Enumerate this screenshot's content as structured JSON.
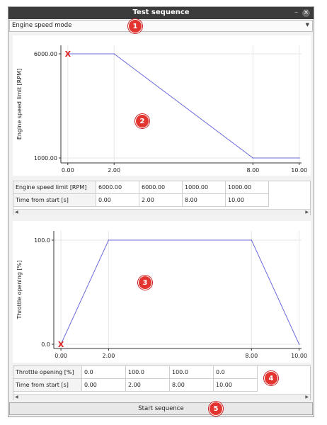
{
  "window": {
    "title": "Test sequence"
  },
  "mode_select": {
    "value": "Engine speed mode"
  },
  "chart_data": [
    {
      "type": "line",
      "x": [
        0,
        2,
        8,
        10
      ],
      "y": [
        6000,
        6000,
        1000,
        1000
      ],
      "xlabel": "Time from start [s]",
      "ylabel": "Engine speed limit [RPM]",
      "xticks": [
        "0.00",
        "2.00",
        "8.00",
        "10.00"
      ],
      "yticks": [
        "1000.00",
        "6000.00"
      ],
      "xlim": [
        -0.3,
        10.1
      ],
      "ylim": [
        1000,
        6000
      ],
      "marker": {
        "x": 0,
        "y": 6000,
        "symbol": "X"
      },
      "color": "#6b6bdb"
    },
    {
      "type": "line",
      "x": [
        0,
        2,
        8,
        10
      ],
      "y": [
        0,
        100,
        100,
        0
      ],
      "xlabel": "Time from start [s]",
      "ylabel": "Throttle opening [%]",
      "xticks": [
        "0.00",
        "2.00",
        "8.00",
        "10.00"
      ],
      "yticks": [
        "0.0",
        "100.0"
      ],
      "xlim": [
        -0.3,
        10.1
      ],
      "ylim": [
        0,
        100
      ],
      "marker": {
        "x": 0,
        "y": 0,
        "symbol": "X"
      },
      "color": "#6b6bdb"
    }
  ],
  "table1": {
    "rows": [
      {
        "header": "Engine speed limit [RPM]",
        "values": [
          "6000.00",
          "6000.00",
          "1000.00",
          "1000.00"
        ]
      },
      {
        "header": "Time from start [s]",
        "values": [
          "0.00",
          "2.00",
          "8.00",
          "10.00"
        ]
      }
    ]
  },
  "table2": {
    "rows": [
      {
        "header": "Throttle opening [%]",
        "values": [
          "0.0",
          "100.0",
          "100.0",
          "0.0"
        ]
      },
      {
        "header": "Time from start [s]",
        "values": [
          "0.00",
          "2.00",
          "8.00",
          "10.00"
        ]
      }
    ]
  },
  "start_button": {
    "label": "Start sequence"
  },
  "badges": [
    "1",
    "2",
    "3",
    "4",
    "5"
  ],
  "colors": {
    "badge": "#e3342f",
    "line": "#6b6bdb",
    "marker": "#e02020",
    "titlebar": "#3b3b3b"
  }
}
